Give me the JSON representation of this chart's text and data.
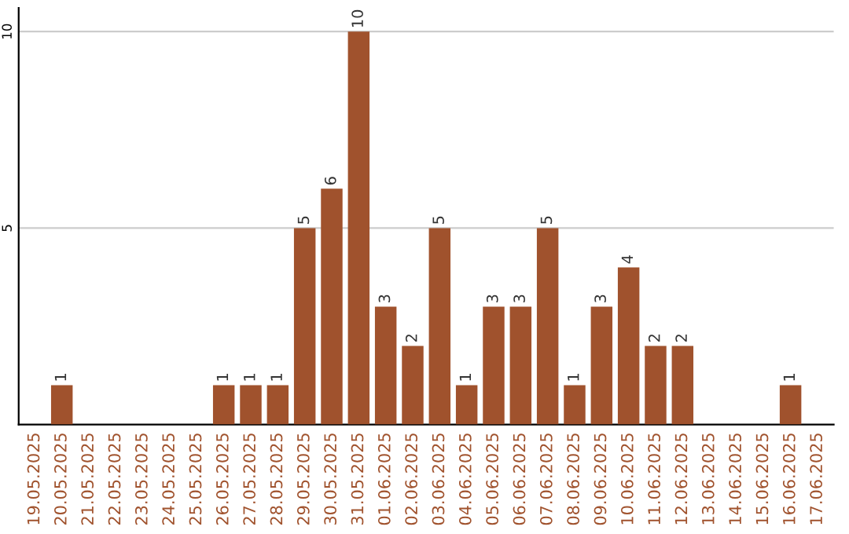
{
  "chart_data": {
    "type": "bar",
    "categories": [
      "19.05.2025",
      "20.05.2025",
      "21.05.2025",
      "22.05.2025",
      "23.05.2025",
      "24.05.2025",
      "25.05.2025",
      "26.05.2025",
      "27.05.2025",
      "28.05.2025",
      "29.05.2025",
      "30.05.2025",
      "31.05.2025",
      "01.06.2025",
      "02.06.2025",
      "03.06.2025",
      "04.06.2025",
      "05.06.2025",
      "06.06.2025",
      "07.06.2025",
      "08.06.2025",
      "09.06.2025",
      "10.06.2025",
      "11.06.2025",
      "12.06.2025",
      "13.06.2025",
      "14.06.2025",
      "15.06.2025",
      "16.06.2025",
      "17.06.2025"
    ],
    "values": [
      0,
      1,
      0,
      0,
      0,
      0,
      0,
      1,
      1,
      1,
      5,
      6,
      10,
      3,
      2,
      5,
      1,
      3,
      3,
      5,
      1,
      3,
      4,
      2,
      2,
      0,
      0,
      0,
      1,
      0
    ],
    "value_labels": [
      null,
      "1",
      null,
      null,
      null,
      null,
      null,
      "1",
      "1",
      "1",
      "5",
      "6",
      "10",
      "3",
      "2",
      "5",
      "1",
      "3",
      "3",
      "5",
      "1",
      "3",
      "4",
      "2",
      "2",
      null,
      null,
      null,
      "1",
      null
    ],
    "color": "#a0522d",
    "ylim": [
      0,
      10.6
    ],
    "yticks": [
      5,
      10
    ],
    "grid": "y"
  }
}
